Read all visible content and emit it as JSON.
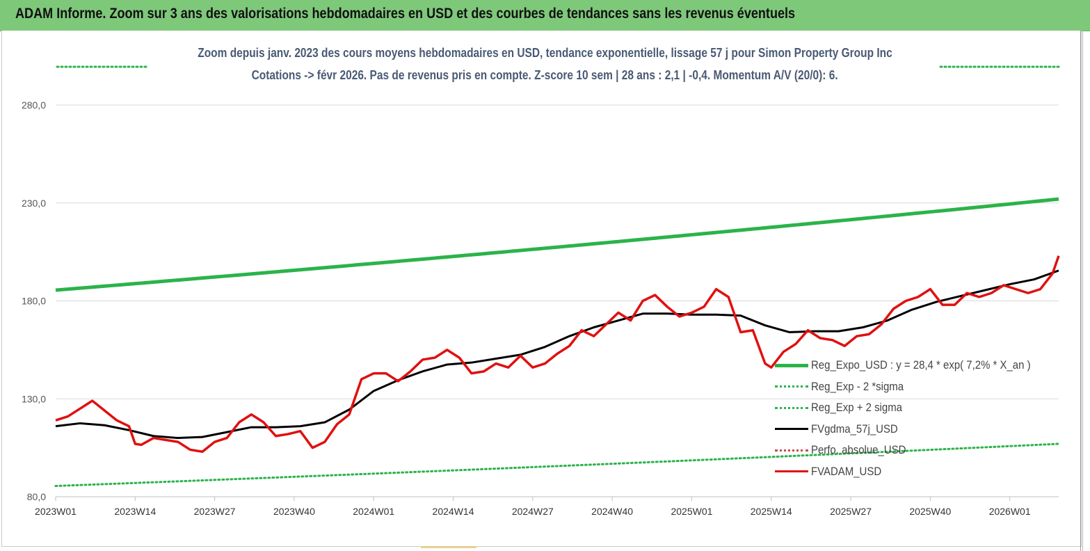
{
  "banner": {
    "title": "ADAM Informe. Zoom sur 3 ans des valorisations hebdomadaires en USD et des courbes de tendances sans les revenus éventuels"
  },
  "colors": {
    "banner_bg": "#7ec87a",
    "title_text": "#4a5a74",
    "reg_expo": "#2bb34a",
    "sigma": "#2bb34a",
    "fvgdma": "#000000",
    "perfo": "#c0504d",
    "fvadam": "#e01010",
    "grid": "#d9d9d9"
  },
  "chart_data": {
    "type": "line",
    "title": "Zoom depuis janv. 2023 des cours moyens hebdomadaires en USD, tendance exponentielle, lissage 57 j pour Simon Property Group Inc",
    "subtitle": "Cotations -> févr 2026. Pas de revenus pris en compte. Z-score 10 sem | 28 ans : 2,1 | -0,4. Momentum A/V (20/0): 6.",
    "ylim": [
      80,
      280
    ],
    "yticks": [
      "80,0",
      "130,0",
      "180,0",
      "230,0",
      "280,0"
    ],
    "ytick_values": [
      80,
      130,
      180,
      230,
      280
    ],
    "xlim": [
      0,
      164
    ],
    "xtick_labels": [
      "2023W01",
      "2023W14",
      "2023W27",
      "2023W40",
      "2024W01",
      "2024W14",
      "2024W27",
      "2024W40",
      "2025W01",
      "2025W14",
      "2025W27",
      "2025W40",
      "2026W01"
    ],
    "xtick_index": [
      0,
      13,
      26,
      39,
      52,
      65,
      78,
      91,
      104,
      117,
      130,
      143,
      156
    ],
    "grid": true,
    "legend_position": "bottom-right",
    "series": [
      {
        "name": "Reg_Expo_USD : y = 28,4 * exp( 7,2% *  X_an )",
        "key": "reg_expo",
        "style": "solid-thick",
        "x": [
          0,
          164
        ],
        "y": [
          185.5,
          232
        ],
        "growth": "exponential"
      },
      {
        "name": "Reg_Exp - 2 *sigma",
        "key": "sigma_minus",
        "style": "dotted",
        "x": [
          0,
          164
        ],
        "y": [
          85.5,
          107
        ],
        "growth": "exponential"
      },
      {
        "name": "Reg_Exp + 2 sigma",
        "key": "sigma_plus",
        "style": "dotted",
        "x": [
          0,
          15,
          146,
          164
        ],
        "y": [
          301,
          301,
          301,
          301
        ],
        "segments": [
          [
            0,
            15
          ],
          [
            146,
            164
          ]
        ]
      },
      {
        "name": "FVgdma_57j_USD",
        "key": "fvgdma",
        "style": "solid",
        "x": [
          0,
          4,
          8,
          12,
          16,
          20,
          24,
          28,
          32,
          36,
          40,
          44,
          48,
          52,
          56,
          60,
          64,
          68,
          72,
          76,
          80,
          84,
          88,
          92,
          96,
          100,
          104,
          108,
          112,
          116,
          120,
          124,
          128,
          132,
          136,
          140,
          144,
          148,
          152,
          156,
          160,
          164
        ],
        "y": [
          116,
          117.5,
          116.5,
          114,
          111,
          110,
          110.5,
          113,
          115.5,
          115.5,
          116,
          118,
          124.5,
          134,
          139.5,
          144,
          147.5,
          148.5,
          150.5,
          152.5,
          156.5,
          162,
          166.5,
          170,
          173.5,
          173.5,
          173,
          173,
          172.5,
          167.5,
          164,
          164.5,
          164.5,
          166.5,
          170,
          175.5,
          179.5,
          182.5,
          185.5,
          188.5,
          191,
          195.5
        ]
      },
      {
        "name": "Perfo. absolue_USD",
        "key": "perfo",
        "style": "dotted-red",
        "x": [],
        "y": []
      },
      {
        "name": "FVADAM_USD",
        "key": "fvadam",
        "style": "solid-thick",
        "x": [
          0,
          2,
          4,
          6,
          8,
          10,
          12,
          13,
          14,
          16,
          18,
          20,
          22,
          24,
          26,
          28,
          30,
          32,
          34,
          36,
          38,
          40,
          42,
          44,
          46,
          48,
          50,
          52,
          54,
          56,
          58,
          60,
          62,
          64,
          66,
          68,
          70,
          72,
          74,
          76,
          78,
          80,
          82,
          84,
          86,
          88,
          90,
          92,
          94,
          96,
          98,
          100,
          102,
          104,
          106,
          108,
          110,
          112,
          114,
          116,
          117,
          119,
          121,
          123,
          125,
          127,
          129,
          131,
          133,
          135,
          137,
          139,
          141,
          143,
          145,
          147,
          149,
          151,
          153,
          155,
          157,
          159,
          161,
          163,
          164
        ],
        "y": [
          119,
          121,
          125,
          129,
          124,
          119,
          116,
          107,
          106.5,
          110,
          109,
          108,
          104,
          103,
          108,
          110,
          118,
          122,
          118,
          111,
          112,
          113.5,
          105,
          108,
          117,
          122,
          140,
          143,
          143,
          139,
          144,
          150,
          151,
          155,
          151,
          143,
          144,
          148,
          146,
          152,
          146,
          148,
          153,
          157,
          165,
          162,
          168,
          174,
          170,
          180,
          183,
          177,
          172,
          174,
          177,
          186,
          182,
          164,
          165,
          148,
          146,
          154,
          158,
          165,
          161,
          160,
          157,
          162,
          163,
          168,
          176,
          180,
          182,
          186,
          178,
          178,
          184,
          182,
          184,
          188,
          186,
          184,
          186,
          194,
          203
        ]
      }
    ]
  },
  "legend": {
    "items": [
      {
        "label": "Reg_Expo_USD : y = 28,4 * exp( 7,2% *  X_an )",
        "key": "reg_expo"
      },
      {
        "label": "Reg_Exp - 2 *sigma",
        "key": "sigma_minus"
      },
      {
        "label": "Reg_Exp + 2 sigma",
        "key": "sigma_plus"
      },
      {
        "label": "FVgdma_57j_USD",
        "key": "fvgdma"
      },
      {
        "label": "Perfo. absolue_USD",
        "key": "perfo"
      },
      {
        "label": "FVADAM_USD",
        "key": "fvadam"
      }
    ]
  }
}
